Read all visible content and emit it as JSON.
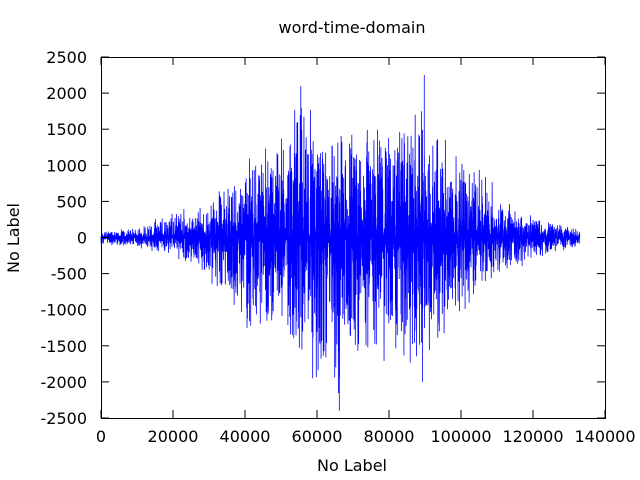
{
  "chart_data": {
    "type": "line",
    "title": "word-time-domain",
    "xlabel": "No Label",
    "ylabel": "No Label",
    "xlim": [
      0,
      140000
    ],
    "ylim": [
      -2500,
      2500
    ],
    "xticks": [
      0,
      20000,
      40000,
      60000,
      80000,
      100000,
      120000,
      140000
    ],
    "yticks": [
      -2500,
      -2000,
      -1500,
      -1000,
      -500,
      0,
      500,
      1000,
      1500,
      2000,
      2500
    ],
    "grid": false,
    "legend": "none",
    "series_color": "#0000ff",
    "x_extent": [
      0,
      133000
    ],
    "envelope": {
      "x": [
        0,
        5000,
        10000,
        15000,
        20000,
        25000,
        30000,
        35000,
        40000,
        45000,
        50000,
        55000,
        60000,
        65000,
        70000,
        75000,
        80000,
        85000,
        90000,
        95000,
        100000,
        105000,
        110000,
        115000,
        120000,
        125000,
        130000,
        133000
      ],
      "max": [
        100,
        120,
        150,
        260,
        450,
        400,
        500,
        850,
        1200,
        1350,
        1550,
        2100,
        1850,
        1550,
        1600,
        1800,
        1750,
        1800,
        2250,
        1550,
        1300,
        1050,
        700,
        450,
        350,
        250,
        200,
        100
      ],
      "min": [
        -100,
        -120,
        -150,
        -200,
        -300,
        -450,
        -700,
        -1050,
        -1350,
        -1500,
        -1550,
        -1750,
        -2000,
        -2400,
        -1900,
        -1850,
        -1800,
        -1950,
        -1650,
        -1550,
        -1200,
        -900,
        -700,
        -500,
        -300,
        -250,
        -200,
        -100
      ]
    },
    "peaks": [
      {
        "x": 55500,
        "y": 2100
      },
      {
        "x": 89800,
        "y": 2250
      },
      {
        "x": 66200,
        "y": -2400
      },
      {
        "x": 89300,
        "y": -2000
      },
      {
        "x": 58800,
        "y": -1950
      }
    ]
  }
}
